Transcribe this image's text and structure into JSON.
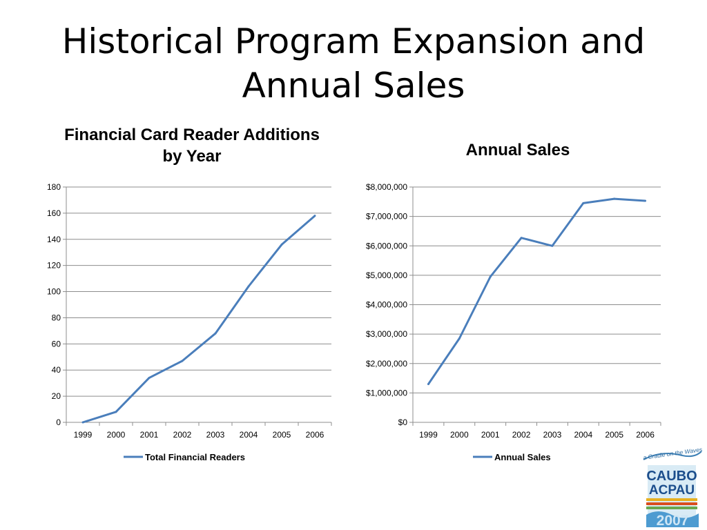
{
  "slide": {
    "title_line1": "Historical Program Expansion and",
    "title_line2": "Annual Sales"
  },
  "logo": {
    "tagline": "a Cradle on the Waves",
    "line1": "CAUBO",
    "line2": "ACPAU",
    "year": "2007"
  },
  "chart_data": [
    {
      "type": "line",
      "title_line1": "Financial Card Reader Additions",
      "title_line2": "by Year",
      "categories": [
        "1999",
        "2000",
        "2001",
        "2002",
        "2003",
        "2004",
        "2005",
        "2006"
      ],
      "series": [
        {
          "name": "Total Financial Readers",
          "values": [
            0,
            8,
            34,
            47,
            68,
            104,
            136,
            158
          ],
          "color": "#4a7ebb"
        }
      ],
      "ylim": [
        0,
        180
      ],
      "yticks": [
        0,
        20,
        40,
        60,
        80,
        100,
        120,
        140,
        160,
        180
      ],
      "ytick_labels": [
        "0",
        "20",
        "40",
        "60",
        "80",
        "100",
        "120",
        "140",
        "160",
        "180"
      ],
      "grid": true,
      "legend": "bottom"
    },
    {
      "type": "line",
      "title": "Annual Sales",
      "categories": [
        "1999",
        "2000",
        "2001",
        "2002",
        "2003",
        "2004",
        "2005",
        "2006"
      ],
      "series": [
        {
          "name": "Annual Sales",
          "values": [
            1300000,
            2850000,
            4950000,
            6270000,
            6000000,
            7450000,
            7600000,
            7530000
          ],
          "color": "#4a7ebb"
        }
      ],
      "ylim": [
        0,
        8000000
      ],
      "yticks": [
        0,
        1000000,
        2000000,
        3000000,
        4000000,
        5000000,
        6000000,
        7000000,
        8000000
      ],
      "ytick_labels": [
        "$0",
        "$1,000,000",
        "$2,000,000",
        "$3,000,000",
        "$4,000,000",
        "$5,000,000",
        "$6,000,000",
        "$7,000,000",
        "$8,000,000"
      ],
      "grid": true,
      "legend": "bottom"
    }
  ]
}
